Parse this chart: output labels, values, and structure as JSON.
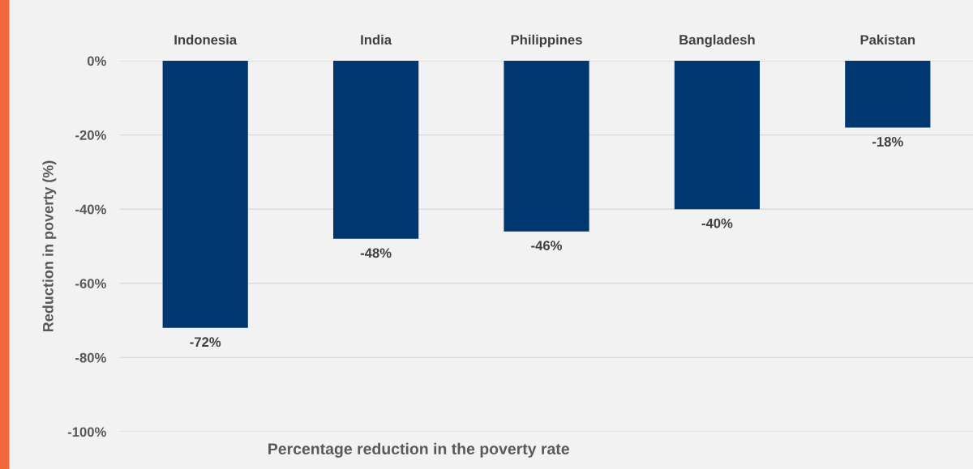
{
  "chart_data": {
    "type": "bar",
    "xlabel": "Percentage reduction in the poverty rate",
    "ylabel": "Reduction in poverty (%)",
    "categories": [
      "Indonesia",
      "India",
      "Philippines",
      "Bangladesh",
      "Pakistan"
    ],
    "values": [
      -72,
      -48,
      -46,
      -40,
      -18
    ],
    "color": "#003770",
    "value_labels": [
      "-72%",
      "-48%",
      "-46%",
      "-40%",
      "-18%"
    ],
    "ylim": [
      -100,
      0
    ],
    "yticks": [
      {
        "value": -100,
        "label": "-100%"
      },
      {
        "value": -80,
        "label": "-80%"
      },
      {
        "value": -60,
        "label": "-60%"
      },
      {
        "value": -40,
        "label": "-40%"
      },
      {
        "value": -20,
        "label": "-20%"
      },
      {
        "value": 0,
        "label": "0%"
      }
    ],
    "grid": "y",
    "legend": false
  }
}
